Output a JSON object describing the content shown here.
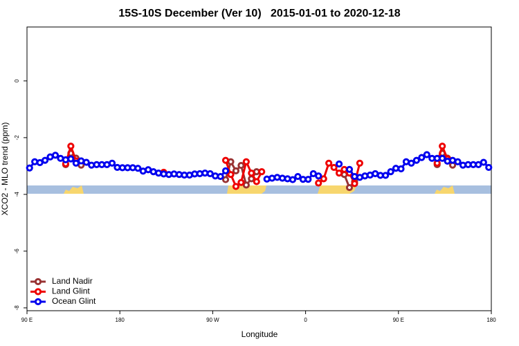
{
  "chart_data": {
    "type": "line",
    "title": "15S-10S December (Ver 10)   2015-01-01 to 2020-12-18",
    "x_label": "Longitude",
    "y_label": "XCO2 - MLO trend (ppm)",
    "xlim": [
      90,
      540
    ],
    "xticks": [
      {
        "value": 90,
        "label": "90 E"
      },
      {
        "value": 180,
        "label": "180"
      },
      {
        "value": 270,
        "label": "90 W"
      },
      {
        "value": 360,
        "label": "0"
      },
      {
        "value": 450,
        "label": "90 E"
      },
      {
        "value": 540,
        "label": "180"
      }
    ],
    "ylim": [
      -8.1,
      1.9
    ],
    "yticks": [
      0,
      -2,
      -4,
      -6,
      -8
    ],
    "legend": "bottom-left",
    "series": [
      {
        "name": "Land Nadir",
        "color": "#993333",
        "x": [
          127.5,
          132.5,
          137.5,
          142.5,
          282.5,
          287.5,
          292.5,
          297.5,
          302.5,
          307.5,
          312.5,
          397.5,
          402.5,
          407.5,
          487.5,
          492.5,
          497.5,
          502.5
        ],
        "values": [
          -2.95,
          -2.55,
          -2.72,
          -2.97,
          -3.48,
          -2.85,
          -3.17,
          -2.98,
          -3.67,
          -3.45,
          -3.2,
          -3.3,
          -3.76,
          -3.55,
          -2.95,
          -2.55,
          -2.72,
          -2.97
        ]
      },
      {
        "name": "Land Glint",
        "color": "#ee0000",
        "x": [
          127.5,
          132.5,
          137.5,
          222.5,
          282.5,
          287.5,
          292.5,
          297.5,
          302.5,
          307.5,
          312.5,
          317.5,
          372.5,
          377.5,
          382.5,
          387.5,
          392.5,
          397.5,
          402.5,
          407.5,
          412.5,
          487.5,
          492.5,
          497.5
        ],
        "values": [
          -2.92,
          -2.3,
          -2.82,
          -3.22,
          -2.8,
          -3.3,
          -3.72,
          -3.58,
          -2.85,
          -3.25,
          -3.55,
          -3.2,
          -3.6,
          -3.45,
          -2.9,
          -3.05,
          -3.25,
          -3.12,
          -3.25,
          -3.62,
          -2.9,
          -2.9,
          -2.3,
          -2.75
        ]
      },
      {
        "name": "Ocean Glint",
        "color": "#0000ee",
        "x": [
          92.5,
          97.5,
          102.5,
          107.5,
          112.5,
          117.5,
          122.5,
          127.5,
          132.5,
          137.5,
          142.5,
          147.5,
          152.5,
          157.5,
          162.5,
          167.5,
          172.5,
          177.5,
          182.5,
          187.5,
          192.5,
          197.5,
          202.5,
          207.5,
          212.5,
          217.5,
          222.5,
          227.5,
          232.5,
          237.5,
          242.5,
          247.5,
          252.5,
          257.5,
          262.5,
          267.5,
          272.5,
          277.5,
          282.5,
          287.5,
          292.5,
          297.5,
          302.5,
          307.5,
          312.5,
          317.5,
          322.5,
          327.5,
          332.5,
          337.5,
          342.5,
          347.5,
          352.5,
          357.5,
          362.5,
          367.5,
          372.5,
          377.5,
          382.5,
          387.5,
          392.5,
          397.5,
          402.5,
          407.5,
          412.5,
          417.5,
          422.5,
          427.5,
          432.5,
          437.5,
          442.5,
          447.5,
          452.5,
          457.5,
          462.5,
          467.5,
          472.5,
          477.5,
          482.5,
          487.5,
          492.5,
          497.5,
          502.5,
          507.5,
          512.5,
          517.5,
          522.5,
          527.5,
          532.5,
          537.5
        ],
        "values": [
          -3.07,
          -2.85,
          -2.88,
          -2.8,
          -2.68,
          -2.62,
          -2.73,
          -2.78,
          -2.75,
          -2.9,
          -2.82,
          -2.87,
          -2.97,
          -2.95,
          -2.95,
          -2.95,
          -2.9,
          -3.05,
          -3.06,
          -3.06,
          -3.06,
          -3.08,
          -3.18,
          -3.13,
          -3.2,
          -3.25,
          -3.28,
          -3.3,
          -3.28,
          -3.3,
          -3.32,
          -3.32,
          -3.28,
          -3.27,
          -3.25,
          -3.27,
          -3.35,
          -3.37,
          -3.17,
          null,
          null,
          null,
          null,
          null,
          null,
          null,
          -3.46,
          -3.43,
          -3.4,
          -3.43,
          -3.45,
          -3.48,
          -3.37,
          -3.47,
          -3.47,
          -3.27,
          -3.35,
          null,
          null,
          null,
          -2.93,
          null,
          -3.12,
          -3.37,
          -3.4,
          -3.35,
          -3.32,
          -3.27,
          -3.33,
          -3.33,
          -3.2,
          -3.08,
          -3.1,
          -2.85,
          -2.9,
          -2.8,
          -2.7,
          -2.6,
          -2.73,
          -2.73,
          -2.73,
          -2.83,
          -2.8,
          -2.85,
          -2.97,
          -2.95,
          -2.95,
          -2.95,
          -2.87,
          -3.05
        ]
      }
    ]
  }
}
